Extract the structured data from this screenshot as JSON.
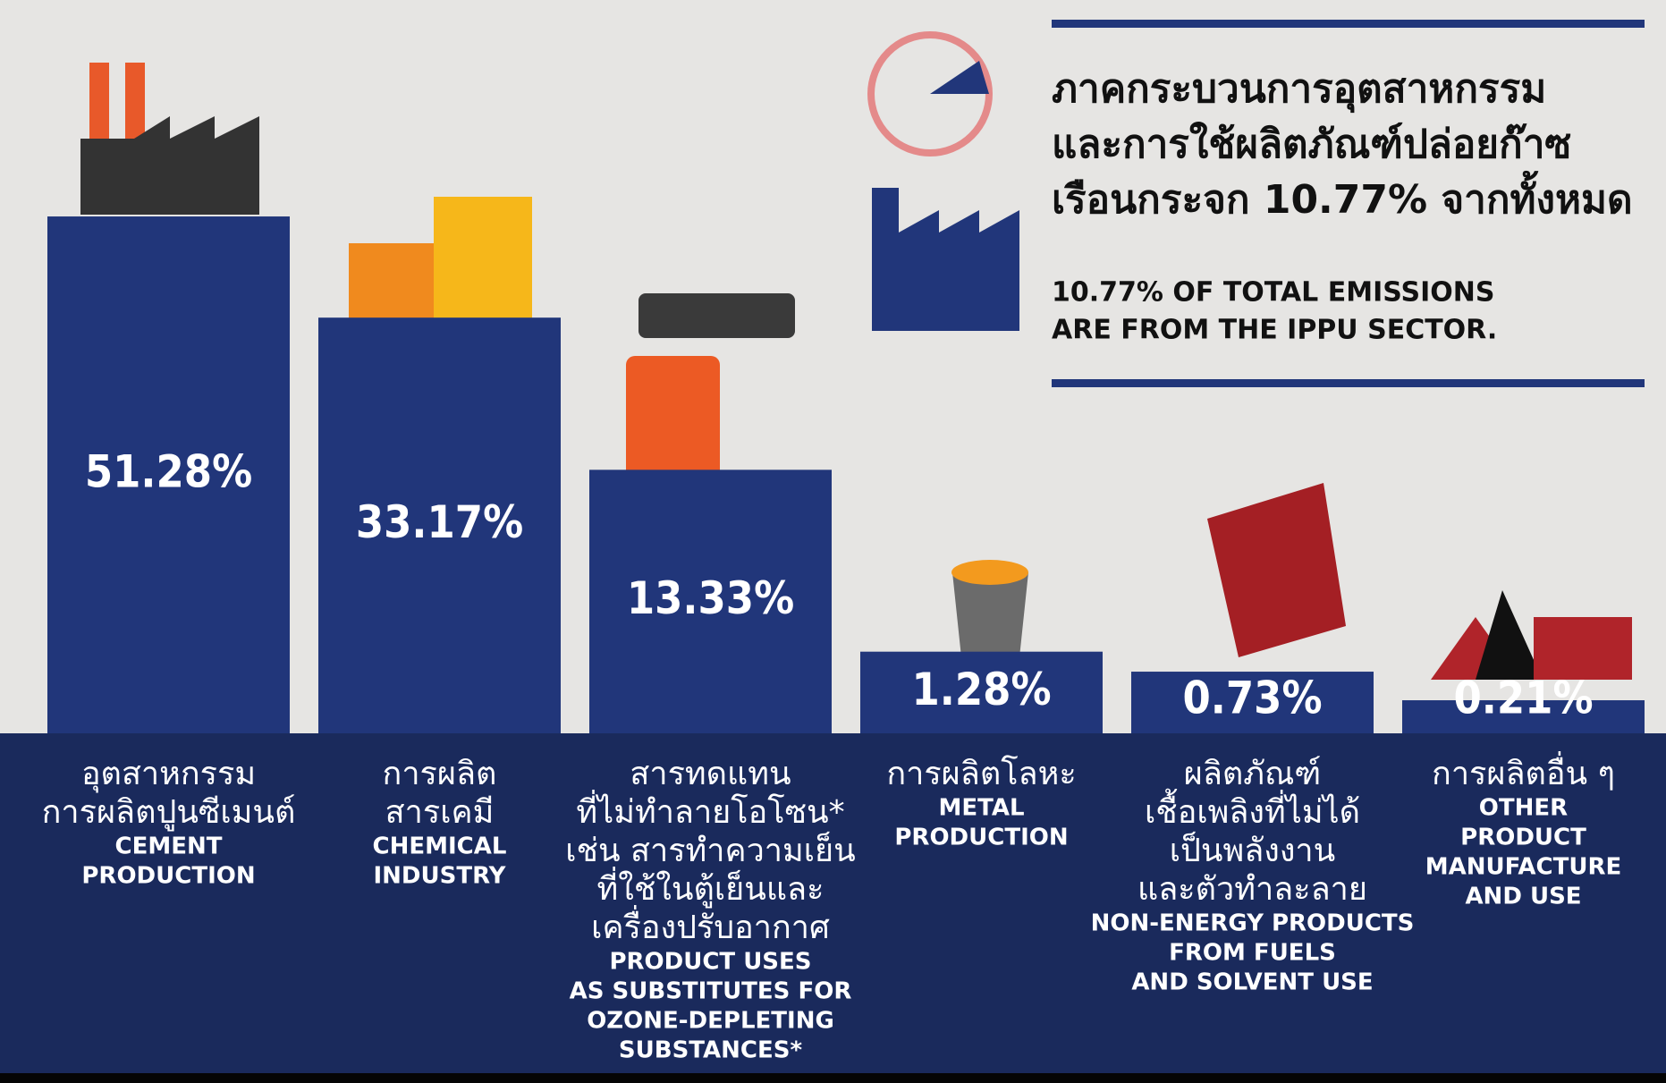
{
  "chart_data": {
    "type": "bar",
    "title": [
      "ภาคกระบวนการอุตสาหกรรม",
      "และการใช้ผลิตภัณฑ์ปล่อยก๊าซ",
      "เรือนกระจก 10.77% จากทั้งหมด"
    ],
    "subtitle": [
      "10.77% OF TOTAL EMISSIONS",
      "ARE FROM THE IPPU SECTOR."
    ],
    "categories": [
      [
        "อุตสาหกรรม",
        "การผลิตปูนซีเมนต์"
      ],
      [
        "การผลิต",
        "สารเคมี"
      ],
      [
        "สารทดแทน",
        "ที่ไม่ทำลายโอโซน*",
        "เช่น สารทำความเย็น",
        "ที่ใช้ในตู้เย็นและ",
        "เครื่องปรับอากาศ"
      ],
      [
        "การผลิตโลหะ"
      ],
      [
        "ผลิตภัณฑ์",
        "เชื้อเพลิงที่ไม่ได้",
        "เป็นพลังงาน",
        "และตัวทำละลาย"
      ],
      [
        "การผลิตอื่น ๆ"
      ]
    ],
    "categories_en": [
      [
        "CEMENT",
        "PRODUCTION"
      ],
      [
        "CHEMICAL",
        "INDUSTRY"
      ],
      [
        "PRODUCT USES",
        "AS SUBSTITUTES FOR",
        "OZONE-DEPLETING",
        "SUBSTANCES*"
      ],
      [
        "METAL",
        "PRODUCTION"
      ],
      [
        "NON-ENERGY PRODUCTS",
        "FROM FUELS",
        "AND SOLVENT USE"
      ],
      [
        "OTHER",
        "PRODUCT",
        "MANUFACTURE",
        "AND USE"
      ]
    ],
    "values": [
      51.28,
      33.17,
      13.33,
      1.28,
      0.73,
      0.21
    ],
    "value_labels": [
      "51.28%",
      "33.17%",
      "13.33%",
      "1.28%",
      "0.73%",
      "0.21%"
    ],
    "color": "#21367a",
    "ylim": [
      0,
      52
    ],
    "scale": "sqrt"
  }
}
